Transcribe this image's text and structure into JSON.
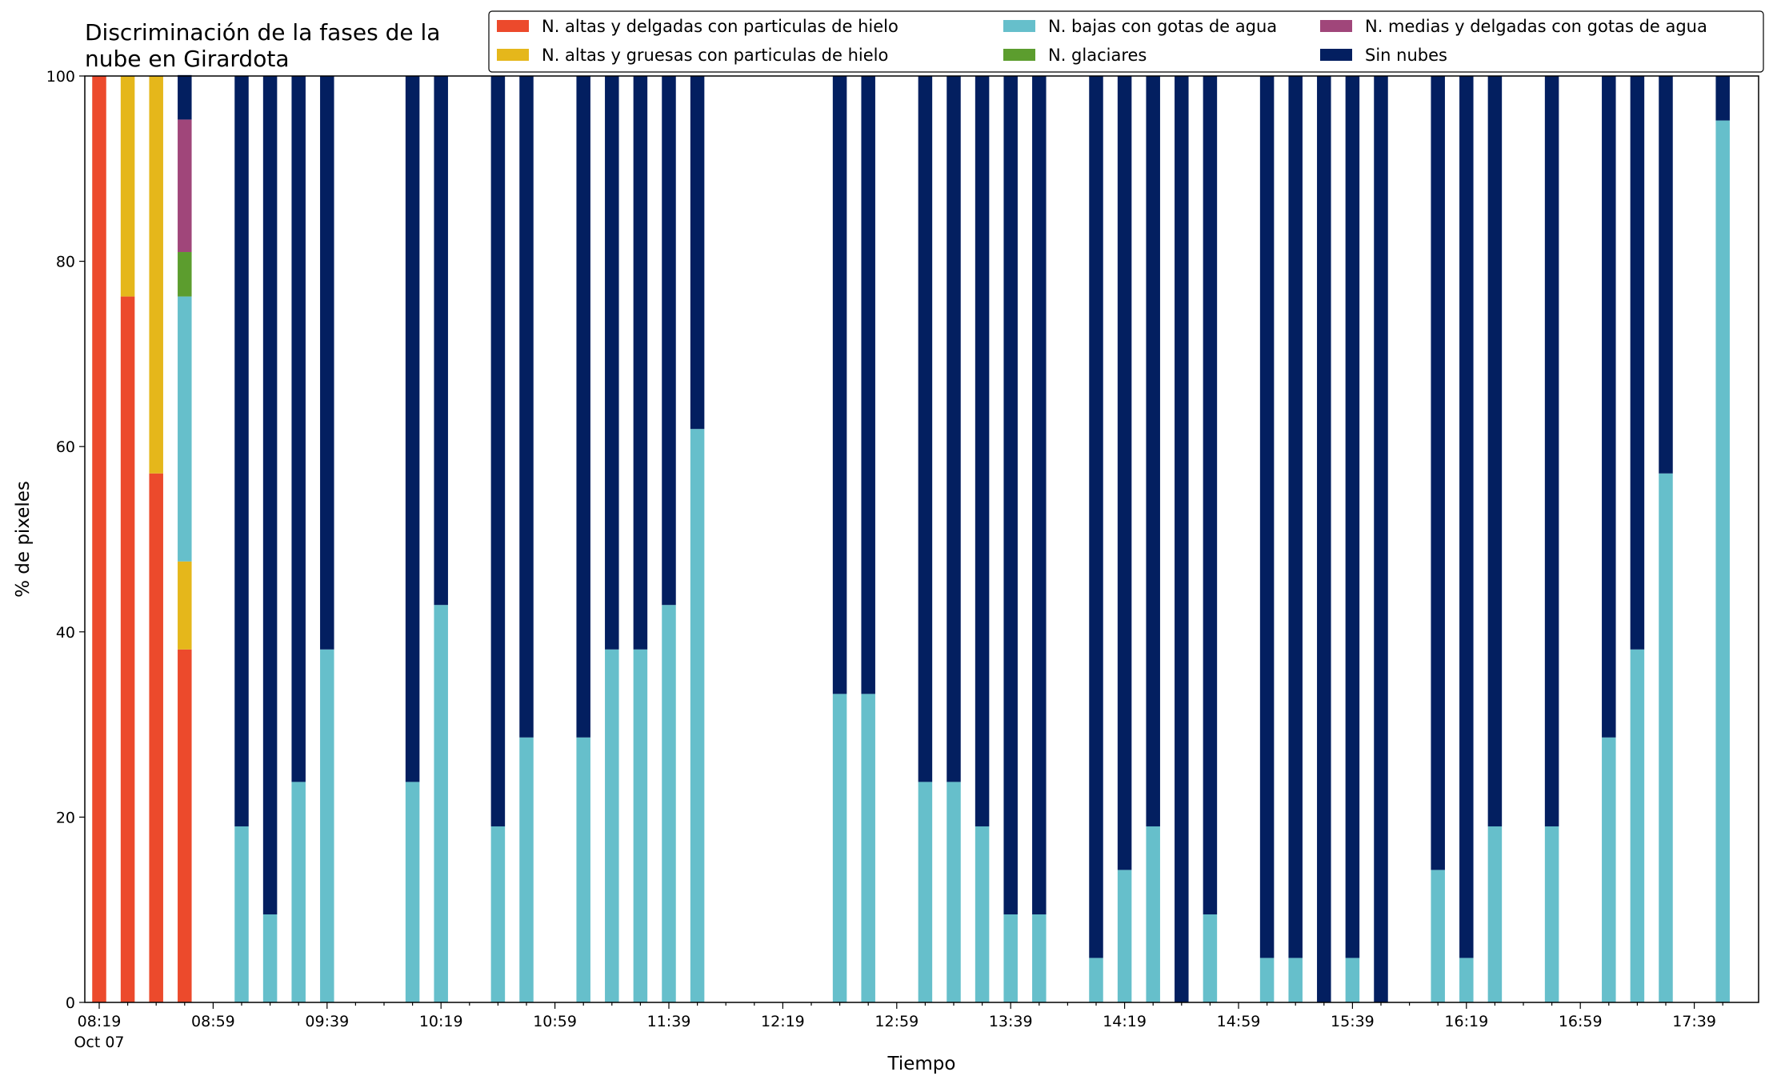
{
  "chart_data": {
    "type": "bar",
    "stacked": true,
    "title_lines": [
      "Discriminación de la fases de la",
      "nube en Girardota"
    ],
    "xlabel": "Tiempo",
    "ylabel": "% de pixeles",
    "ylim": [
      0,
      100
    ],
    "yticks": [
      0,
      20,
      40,
      60,
      80,
      100
    ],
    "xtick_labels": [
      "08:19",
      "08:59",
      "09:39",
      "10:19",
      "10:59",
      "11:39",
      "12:19",
      "12:59",
      "13:39",
      "14:19",
      "14:59",
      "15:39",
      "16:19",
      "16:59",
      "17:39"
    ],
    "date_label": "Oct 07",
    "legend_position": "top-right",
    "legend_ncols": 3,
    "categories": [
      "08:19",
      "08:29",
      "08:39",
      "08:49",
      "08:59",
      "09:09",
      "09:19",
      "09:29",
      "09:39",
      "09:49",
      "09:59",
      "10:09",
      "10:19",
      "10:29",
      "10:39",
      "10:49",
      "10:59",
      "11:09",
      "11:19",
      "11:29",
      "11:39",
      "11:49",
      "11:59",
      "12:09",
      "12:19",
      "12:29",
      "12:39",
      "12:49",
      "12:59",
      "13:09",
      "13:19",
      "13:29",
      "13:39",
      "13:49",
      "13:59",
      "14:09",
      "14:19",
      "14:29",
      "14:39",
      "14:49",
      "14:59",
      "15:09",
      "15:19",
      "15:29",
      "15:39",
      "15:49",
      "15:59",
      "16:09",
      "16:19",
      "16:29",
      "16:39",
      "16:49",
      "16:59",
      "17:09",
      "17:19",
      "17:29",
      "17:39",
      "17:49"
    ],
    "series": [
      {
        "name": "N. altas y delgadas con particulas de hielo",
        "color": "#ec4a2c",
        "values": [
          100,
          76.2,
          57.1,
          38.1,
          0,
          0,
          0,
          0,
          0,
          0,
          0,
          0,
          0,
          0,
          0,
          0,
          0,
          0,
          0,
          0,
          0,
          0,
          0,
          0,
          0,
          0,
          0,
          0,
          0,
          0,
          0,
          0,
          0,
          0,
          0,
          0,
          0,
          0,
          0,
          0,
          0,
          0,
          0,
          0,
          0,
          0,
          0,
          0,
          0,
          0,
          0,
          0,
          0,
          0,
          0,
          0,
          0,
          0
        ]
      },
      {
        "name": "N. altas y gruesas con particulas de hielo",
        "color": "#e5b71b",
        "values": [
          0,
          23.8,
          42.9,
          9.5,
          0,
          0,
          0,
          0,
          0,
          0,
          0,
          0,
          0,
          0,
          0,
          0,
          0,
          0,
          0,
          0,
          0,
          0,
          0,
          0,
          0,
          0,
          0,
          0,
          0,
          0,
          0,
          0,
          0,
          0,
          0,
          0,
          0,
          0,
          0,
          0,
          0,
          0,
          0,
          0,
          0,
          0,
          0,
          0,
          0,
          0,
          0,
          0,
          0,
          0,
          0,
          0,
          0,
          0
        ]
      },
      {
        "name": "N. bajas con gotas de agua",
        "color": "#66bfcb",
        "values": [
          0,
          0,
          0,
          28.6,
          0,
          19,
          9.5,
          23.8,
          38.1,
          0,
          0,
          23.8,
          42.9,
          0,
          19,
          28.6,
          0,
          28.6,
          38.1,
          38.1,
          42.9,
          61.9,
          0,
          0,
          0,
          0,
          33.3,
          33.3,
          0,
          23.8,
          23.8,
          19,
          9.5,
          9.5,
          0,
          4.8,
          14.3,
          19,
          0,
          9.5,
          0,
          4.8,
          4.8,
          0,
          4.8,
          0,
          0,
          14.3,
          4.8,
          19,
          0,
          19,
          0,
          28.6,
          38.1,
          57.1,
          0,
          95.2
        ]
      },
      {
        "name": "N. glaciares",
        "color": "#5c9d2e",
        "values": [
          0,
          0,
          0,
          4.8,
          0,
          0,
          0,
          0,
          0,
          0,
          0,
          0,
          0,
          0,
          0,
          0,
          0,
          0,
          0,
          0,
          0,
          0,
          0,
          0,
          0,
          0,
          0,
          0,
          0,
          0,
          0,
          0,
          0,
          0,
          0,
          0,
          0,
          0,
          0,
          0,
          0,
          0,
          0,
          0,
          0,
          0,
          0,
          0,
          0,
          0,
          0,
          0,
          0,
          0,
          0,
          0,
          0,
          0
        ]
      },
      {
        "name": "N. medias y delgadas con gotas de agua",
        "color": "#a0467a",
        "values": [
          0,
          0,
          0,
          14.3,
          0,
          0,
          0,
          0,
          0,
          0,
          0,
          0,
          0,
          0,
          0,
          0,
          0,
          0,
          0,
          0,
          0,
          0,
          0,
          0,
          0,
          0,
          0,
          0,
          0,
          0,
          0,
          0,
          0,
          0,
          0,
          0,
          0,
          0,
          0,
          0,
          0,
          0,
          0,
          0,
          0,
          0,
          0,
          0,
          0,
          0,
          0,
          0,
          0,
          0,
          0,
          0,
          0,
          0
        ]
      },
      {
        "name": "Sin nubes",
        "color": "#031f60",
        "values": [
          0,
          0,
          0,
          4.8,
          0,
          81,
          90.5,
          76.2,
          61.9,
          0,
          0,
          76.2,
          57.1,
          0,
          81,
          71.4,
          0,
          71.4,
          61.9,
          61.9,
          57.1,
          38.1,
          0,
          0,
          0,
          0,
          66.7,
          66.7,
          0,
          76.2,
          76.2,
          81,
          90.5,
          90.5,
          0,
          95.2,
          85.7,
          81,
          100,
          90.5,
          0,
          95.2,
          95.2,
          100,
          95.2,
          100,
          0,
          85.7,
          95.2,
          81,
          0,
          81,
          0,
          71.4,
          61.9,
          42.9,
          0,
          4.8
        ]
      }
    ]
  }
}
